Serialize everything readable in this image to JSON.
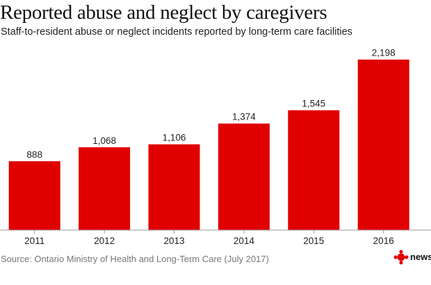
{
  "chart_data": {
    "type": "bar",
    "title": "Reported abuse and neglect by caregivers",
    "subtitle": "Staff-to-resident abuse or neglect incidents reported by long-term care facilities",
    "categories": [
      "2011",
      "2012",
      "2013",
      "2014",
      "2015",
      "2016"
    ],
    "values": [
      888,
      1068,
      1106,
      1374,
      1545,
      2198
    ],
    "value_labels": [
      "888",
      "1,068",
      "1,106",
      "1,374",
      "1,545",
      "2,198"
    ],
    "ylim": [
      0,
      2400
    ],
    "grid": false,
    "bar_color": "#e00000",
    "source": "Source: Ontario Ministry of Health and Long-Term Care (July 2017)"
  },
  "branding": {
    "logo_icon": "cbc-gem-icon",
    "logo_text": "news",
    "logo_color": "#e00000"
  }
}
